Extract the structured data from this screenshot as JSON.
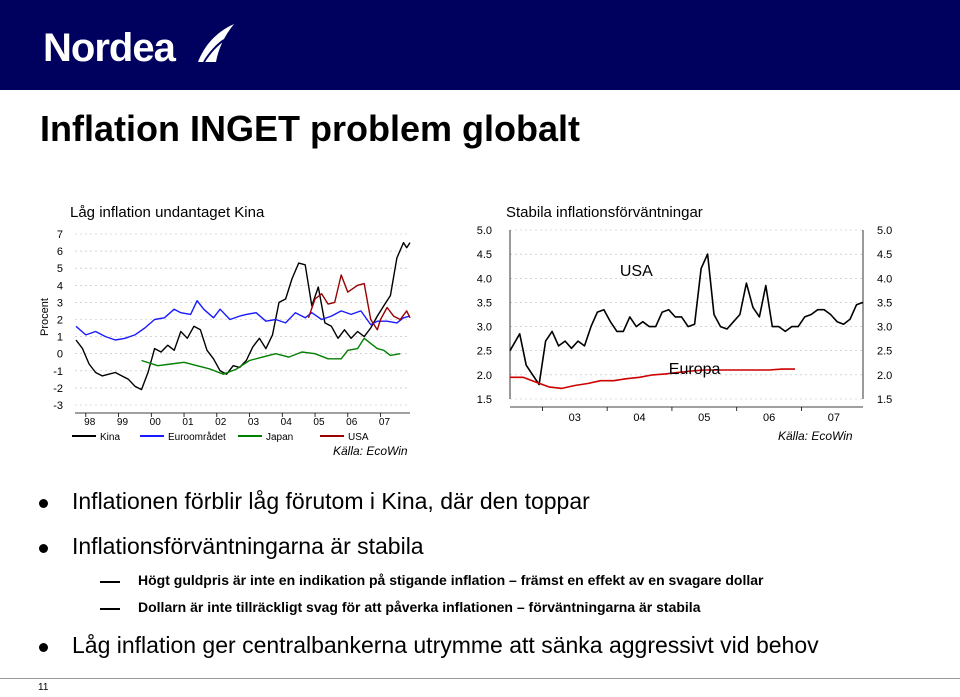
{
  "brand": "Nordea",
  "slide": {
    "title": "Inflation INGET problem globalt",
    "page_number": "11"
  },
  "bullets": {
    "b1": "Inflationen förblir låg förutom i Kina, där den toppar",
    "b2": "Inflationsförväntningarna är stabila",
    "b2_sub1": "Högt guldpris är inte en indikation på stigande inflation – främst en effekt av en svagare dollar",
    "b2_sub2": "Dollarn är inte tillräckligt svag för att påverka inflationen – förväntningarna är stabila",
    "b3": "Låg inflation ger centralbankerna utrymme att sänka aggressivt vid behov"
  },
  "colors": {
    "header": "#00005e",
    "kina": "#000000",
    "euro": "#1a1aff",
    "japan": "#008000",
    "usa": "#990000",
    "europa": "#cc0000"
  },
  "chart_data": [
    {
      "type": "line",
      "title": "Låg inflation undantaget Kina",
      "ylabel": "Procent",
      "source": "Källa: EcoWin",
      "ylim": [
        -3,
        7
      ],
      "yticks": [
        "7",
        "6",
        "5",
        "4",
        "3",
        "2",
        "1",
        "0",
        "-1",
        "-2",
        "-3"
      ],
      "xticks": [
        "98",
        "99",
        "00",
        "01",
        "02",
        "03",
        "04",
        "05",
        "06",
        "07"
      ],
      "x_start": 1997.67,
      "x_end": 2007.9,
      "series": [
        {
          "name": "Kina",
          "points": [
            [
              1997.7,
              0.8
            ],
            [
              1997.9,
              0.3
            ],
            [
              1998.1,
              -0.6
            ],
            [
              1998.3,
              -1.1
            ],
            [
              1998.5,
              -1.3
            ],
            [
              1998.7,
              -1.2
            ],
            [
              1998.9,
              -1.1
            ],
            [
              1999.1,
              -1.3
            ],
            [
              1999.3,
              -1.5
            ],
            [
              1999.5,
              -1.9
            ],
            [
              1999.7,
              -2.1
            ],
            [
              1999.9,
              -1.1
            ],
            [
              2000.1,
              0.3
            ],
            [
              2000.3,
              0.1
            ],
            [
              2000.5,
              0.5
            ],
            [
              2000.7,
              0.2
            ],
            [
              2000.9,
              1.3
            ],
            [
              2001.1,
              0.9
            ],
            [
              2001.3,
              1.6
            ],
            [
              2001.5,
              1.4
            ],
            [
              2001.7,
              0.2
            ],
            [
              2001.9,
              -0.3
            ],
            [
              2002.1,
              -1.0
            ],
            [
              2002.3,
              -1.2
            ],
            [
              2002.5,
              -0.7
            ],
            [
              2002.7,
              -0.8
            ],
            [
              2002.9,
              -0.4
            ],
            [
              2003.1,
              0.4
            ],
            [
              2003.3,
              0.9
            ],
            [
              2003.5,
              0.3
            ],
            [
              2003.7,
              1.1
            ],
            [
              2003.9,
              3.0
            ],
            [
              2004.1,
              3.2
            ],
            [
              2004.3,
              4.4
            ],
            [
              2004.5,
              5.3
            ],
            [
              2004.7,
              5.2
            ],
            [
              2004.9,
              2.8
            ],
            [
              2005.1,
              3.9
            ],
            [
              2005.3,
              1.8
            ],
            [
              2005.5,
              1.6
            ],
            [
              2005.7,
              0.9
            ],
            [
              2005.9,
              1.4
            ],
            [
              2006.1,
              0.9
            ],
            [
              2006.3,
              1.3
            ],
            [
              2006.5,
              1.0
            ],
            [
              2006.7,
              1.5
            ],
            [
              2006.9,
              2.2
            ],
            [
              2007.1,
              2.8
            ],
            [
              2007.3,
              3.4
            ],
            [
              2007.5,
              5.6
            ],
            [
              2007.7,
              6.5
            ],
            [
              2007.8,
              6.2
            ],
            [
              2007.9,
              6.5
            ]
          ]
        },
        {
          "name": "Euroområdet",
          "points": [
            [
              1997.7,
              1.6
            ],
            [
              1998.0,
              1.1
            ],
            [
              1998.3,
              1.3
            ],
            [
              1998.6,
              1.0
            ],
            [
              1998.9,
              0.8
            ],
            [
              1999.2,
              0.9
            ],
            [
              1999.5,
              1.1
            ],
            [
              1999.8,
              1.5
            ],
            [
              2000.1,
              2.0
            ],
            [
              2000.4,
              2.1
            ],
            [
              2000.7,
              2.6
            ],
            [
              2000.9,
              2.4
            ],
            [
              2001.2,
              2.3
            ],
            [
              2001.4,
              3.1
            ],
            [
              2001.6,
              2.6
            ],
            [
              2001.9,
              2.1
            ],
            [
              2002.1,
              2.6
            ],
            [
              2002.4,
              2.0
            ],
            [
              2002.7,
              2.2
            ],
            [
              2002.9,
              2.3
            ],
            [
              2003.2,
              2.4
            ],
            [
              2003.5,
              1.9
            ],
            [
              2003.8,
              2.0
            ],
            [
              2004.1,
              1.8
            ],
            [
              2004.4,
              2.4
            ],
            [
              2004.7,
              2.1
            ],
            [
              2004.9,
              2.4
            ],
            [
              2005.2,
              2.0
            ],
            [
              2005.5,
              2.2
            ],
            [
              2005.8,
              2.5
            ],
            [
              2006.1,
              2.3
            ],
            [
              2006.4,
              2.5
            ],
            [
              2006.7,
              1.7
            ],
            [
              2006.9,
              1.9
            ],
            [
              2007.2,
              1.9
            ],
            [
              2007.5,
              1.8
            ],
            [
              2007.7,
              2.1
            ],
            [
              2007.9,
              2.2
            ]
          ]
        },
        {
          "name": "Japan",
          "points": [
            [
              1999.7,
              -0.4
            ],
            [
              2000.2,
              -0.7
            ],
            [
              2000.6,
              -0.6
            ],
            [
              2001.0,
              -0.5
            ],
            [
              2001.4,
              -0.7
            ],
            [
              2001.8,
              -0.9
            ],
            [
              2002.2,
              -1.2
            ],
            [
              2002.6,
              -0.9
            ],
            [
              2003.0,
              -0.4
            ],
            [
              2003.4,
              -0.2
            ],
            [
              2003.8,
              0.0
            ],
            [
              2004.2,
              -0.2
            ],
            [
              2004.6,
              0.1
            ],
            [
              2005.0,
              0.0
            ],
            [
              2005.4,
              -0.3
            ],
            [
              2005.8,
              -0.3
            ],
            [
              2006.0,
              0.2
            ],
            [
              2006.3,
              0.3
            ],
            [
              2006.5,
              0.9
            ],
            [
              2006.7,
              0.6
            ],
            [
              2006.9,
              0.3
            ],
            [
              2007.1,
              0.2
            ],
            [
              2007.3,
              -0.1
            ],
            [
              2007.6,
              0.0
            ]
          ]
        },
        {
          "name": "USA",
          "points": [
            [
              2004.8,
              2.1
            ],
            [
              2005.0,
              3.2
            ],
            [
              2005.2,
              3.5
            ],
            [
              2005.4,
              2.9
            ],
            [
              2005.6,
              3.0
            ],
            [
              2005.8,
              4.6
            ],
            [
              2006.0,
              3.6
            ],
            [
              2006.3,
              4.0
            ],
            [
              2006.5,
              4.1
            ],
            [
              2006.7,
              2.0
            ],
            [
              2006.9,
              1.4
            ],
            [
              2007.0,
              2.0
            ],
            [
              2007.2,
              2.7
            ],
            [
              2007.4,
              2.2
            ],
            [
              2007.6,
              2.0
            ],
            [
              2007.8,
              2.5
            ],
            [
              2007.9,
              2.1
            ]
          ]
        }
      ]
    },
    {
      "type": "line",
      "title": "Stabila inflationsförväntningar",
      "source": "Källa: EcoWin",
      "ylim": [
        1.5,
        5.0
      ],
      "yticks": [
        "5.0",
        "4.5",
        "4.0",
        "3.5",
        "3.0",
        "2.5",
        "2.0",
        "1.5"
      ],
      "xticks": [
        "03",
        "04",
        "05",
        "06",
        "07"
      ],
      "x_start": 2002.5,
      "x_end": 2007.95,
      "annotations": [
        "USA",
        "Europa"
      ],
      "series": [
        {
          "name": "USA",
          "points": [
            [
              2002.5,
              2.5
            ],
            [
              2002.65,
              2.85
            ],
            [
              2002.75,
              2.2
            ],
            [
              2002.85,
              2.0
            ],
            [
              2002.95,
              1.8
            ],
            [
              2003.05,
              2.7
            ],
            [
              2003.15,
              2.9
            ],
            [
              2003.25,
              2.6
            ],
            [
              2003.35,
              2.7
            ],
            [
              2003.45,
              2.55
            ],
            [
              2003.55,
              2.7
            ],
            [
              2003.65,
              2.6
            ],
            [
              2003.75,
              3.0
            ],
            [
              2003.85,
              3.3
            ],
            [
              2003.95,
              3.35
            ],
            [
              2004.05,
              3.1
            ],
            [
              2004.15,
              2.9
            ],
            [
              2004.25,
              2.9
            ],
            [
              2004.35,
              3.2
            ],
            [
              2004.45,
              3.0
            ],
            [
              2004.55,
              3.1
            ],
            [
              2004.65,
              3.0
            ],
            [
              2004.75,
              3.0
            ],
            [
              2004.85,
              3.3
            ],
            [
              2004.95,
              3.35
            ],
            [
              2005.05,
              3.2
            ],
            [
              2005.15,
              3.2
            ],
            [
              2005.25,
              3.0
            ],
            [
              2005.35,
              3.05
            ],
            [
              2005.45,
              4.2
            ],
            [
              2005.55,
              4.5
            ],
            [
              2005.65,
              3.25
            ],
            [
              2005.75,
              3.0
            ],
            [
              2005.85,
              2.95
            ],
            [
              2005.95,
              3.1
            ],
            [
              2006.05,
              3.25
            ],
            [
              2006.15,
              3.9
            ],
            [
              2006.25,
              3.4
            ],
            [
              2006.35,
              3.2
            ],
            [
              2006.45,
              3.85
            ],
            [
              2006.55,
              3.0
            ],
            [
              2006.65,
              3.0
            ],
            [
              2006.75,
              2.9
            ],
            [
              2006.85,
              3.0
            ],
            [
              2006.95,
              3.0
            ],
            [
              2007.05,
              3.2
            ],
            [
              2007.15,
              3.25
            ],
            [
              2007.25,
              3.35
            ],
            [
              2007.35,
              3.35
            ],
            [
              2007.45,
              3.25
            ],
            [
              2007.55,
              3.1
            ],
            [
              2007.65,
              3.05
            ],
            [
              2007.75,
              3.15
            ],
            [
              2007.85,
              3.45
            ],
            [
              2007.95,
              3.5
            ]
          ]
        },
        {
          "name": "Europa",
          "points": [
            [
              2002.5,
              1.95
            ],
            [
              2002.7,
              1.95
            ],
            [
              2002.9,
              1.85
            ],
            [
              2003.1,
              1.75
            ],
            [
              2003.3,
              1.72
            ],
            [
              2003.5,
              1.78
            ],
            [
              2003.7,
              1.82
            ],
            [
              2003.9,
              1.88
            ],
            [
              2004.1,
              1.88
            ],
            [
              2004.3,
              1.92
            ],
            [
              2004.5,
              1.95
            ],
            [
              2004.7,
              2.0
            ],
            [
              2004.9,
              2.02
            ],
            [
              2005.1,
              2.05
            ],
            [
              2005.3,
              2.08
            ],
            [
              2005.5,
              2.1
            ],
            [
              2005.7,
              2.1
            ],
            [
              2005.9,
              2.1
            ],
            [
              2006.1,
              2.1
            ],
            [
              2006.3,
              2.1
            ],
            [
              2006.5,
              2.1
            ],
            [
              2006.7,
              2.12
            ],
            [
              2006.9,
              2.12
            ]
          ]
        }
      ]
    }
  ]
}
